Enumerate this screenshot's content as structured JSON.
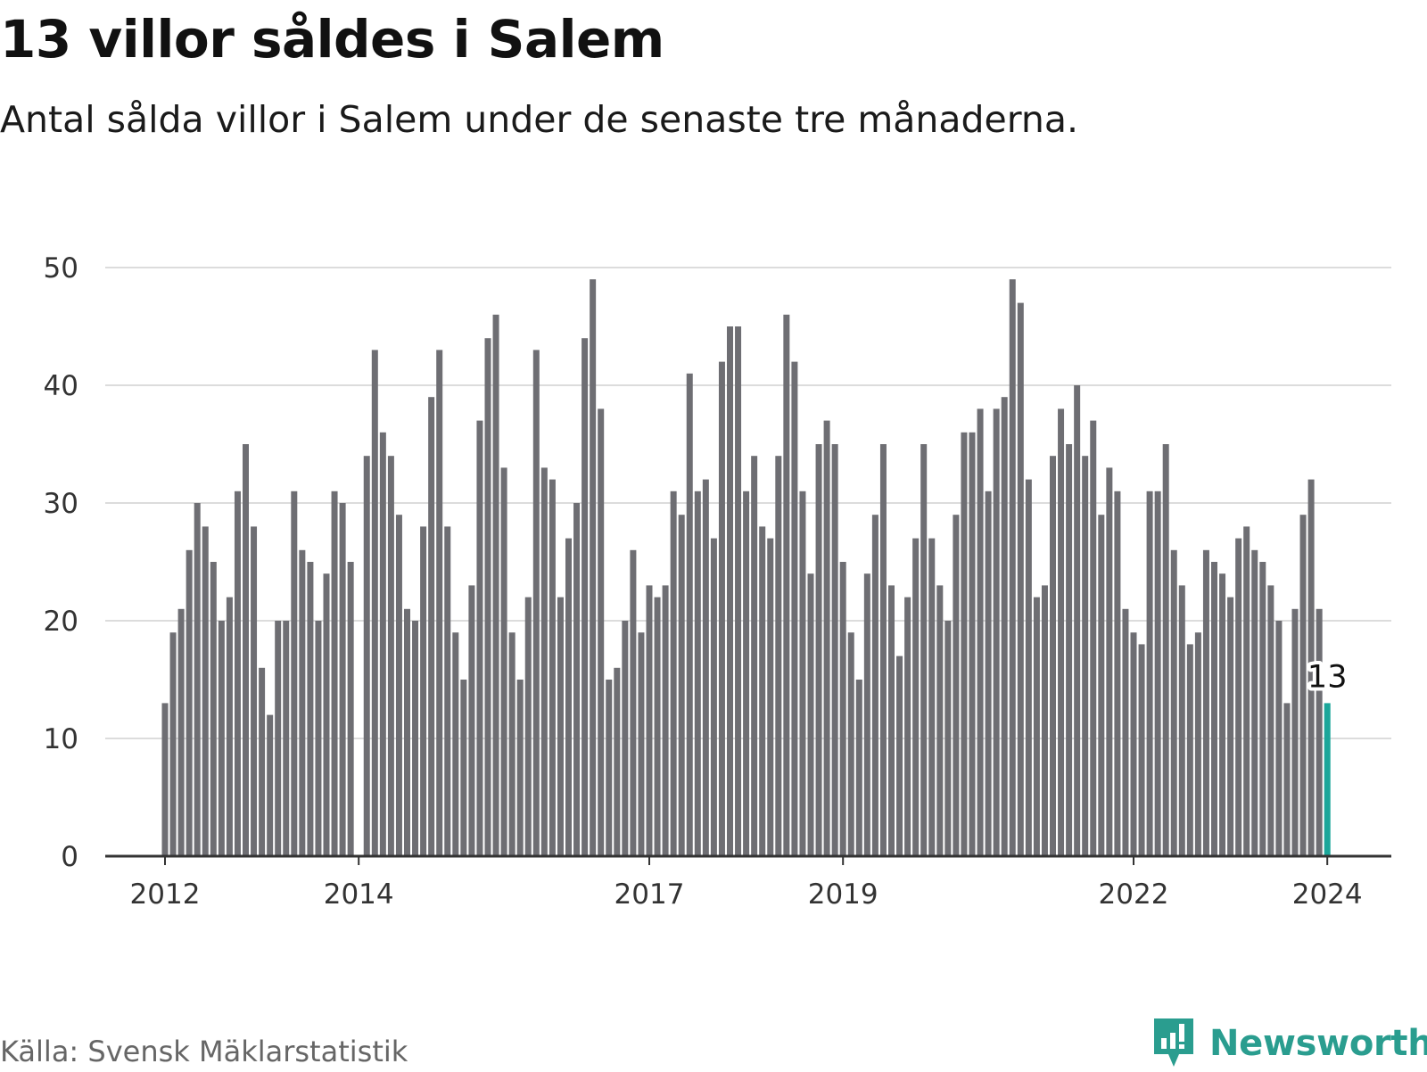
{
  "title": "13 villor såldes i Salem",
  "subtitle": "Antal sålda villor i Salem under de senaste tre månaderna.",
  "source": "Källa: Svensk Mäklarstatistik",
  "brand": "Newsworthy",
  "colors": {
    "bar": "#6e6e73",
    "highlight": "#1aa69a",
    "grid": "#dcdcdc",
    "axis": "#333333",
    "brand": "#2a9d8f"
  },
  "chart_data": {
    "type": "bar",
    "title": "13 villor såldes i Salem",
    "subtitle": "Antal sålda villor i Salem under de senaste tre månaderna.",
    "xlabel": "",
    "ylabel": "",
    "ylim": [
      0,
      50
    ],
    "yticks": [
      "0",
      "10",
      "20",
      "30",
      "40",
      "50"
    ],
    "xticks": [
      {
        "label": "2012",
        "index": 0
      },
      {
        "label": "2014",
        "index": 24
      },
      {
        "label": "2017",
        "index": 60
      },
      {
        "label": "2019",
        "index": 84
      },
      {
        "label": "2022",
        "index": 120
      },
      {
        "label": "2024",
        "index": 144
      }
    ],
    "grid": true,
    "highlight": {
      "index": 144,
      "label": "13"
    },
    "values": [
      13,
      19,
      21,
      26,
      30,
      28,
      25,
      20,
      22,
      31,
      35,
      28,
      16,
      12,
      20,
      20,
      31,
      26,
      25,
      20,
      24,
      31,
      30,
      25,
      null,
      34,
      43,
      36,
      34,
      29,
      21,
      20,
      28,
      39,
      43,
      28,
      19,
      15,
      23,
      37,
      44,
      46,
      33,
      19,
      15,
      22,
      43,
      33,
      32,
      22,
      27,
      30,
      44,
      49,
      38,
      15,
      16,
      20,
      26,
      19,
      23,
      22,
      23,
      31,
      29,
      41,
      31,
      32,
      27,
      42,
      45,
      45,
      31,
      34,
      28,
      27,
      34,
      46,
      42,
      31,
      24,
      35,
      37,
      35,
      25,
      19,
      15,
      24,
      29,
      35,
      23,
      17,
      22,
      27,
      35,
      27,
      23,
      20,
      29,
      36,
      36,
      38,
      31,
      38,
      39,
      49,
      47,
      32,
      22,
      23,
      34,
      38,
      35,
      40,
      34,
      37,
      29,
      33,
      31,
      21,
      19,
      18,
      31,
      31,
      35,
      26,
      23,
      18,
      19,
      26,
      25,
      24,
      22,
      27,
      28,
      26,
      25,
      23,
      20,
      13,
      21,
      29,
      32,
      21,
      13
    ]
  }
}
